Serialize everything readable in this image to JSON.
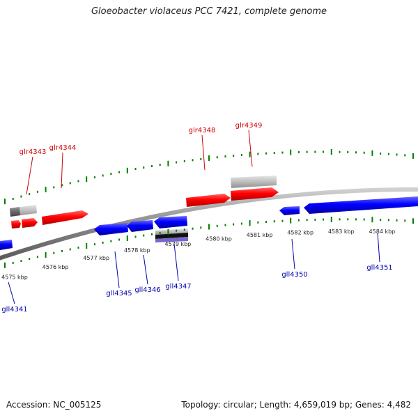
{
  "title": "Gloeobacter violaceus PCC 7421, complete genome",
  "footer": {
    "accession": "Accession: NC_005125",
    "summary": "Topology: circular; Length: 4,659,019 bp; Genes: 4,482"
  },
  "colors": {
    "forward_gene": "#ff0000",
    "reverse_gene": "#0000ff",
    "rna_feature": "#b0b0b0",
    "tick": "#008000",
    "backbone": "#888888",
    "forward_label": "#cc0000",
    "reverse_label": "#0000aa"
  },
  "scale_labels": [
    "4575 kbp",
    "4576 kbp",
    "4577 kbp",
    "4578 kbp",
    "4579 kbp",
    "4580 kbp",
    "4581 kbp",
    "4582 kbp",
    "4583 kbp",
    "4584 kbp"
  ],
  "forward_genes": [
    "glr4343",
    "glr4344",
    "glr4348",
    "glr4349"
  ],
  "reverse_genes": [
    "gll4341",
    "gll4345",
    "gll4346",
    "gll4347",
    "gll4350",
    "gll4351"
  ]
}
